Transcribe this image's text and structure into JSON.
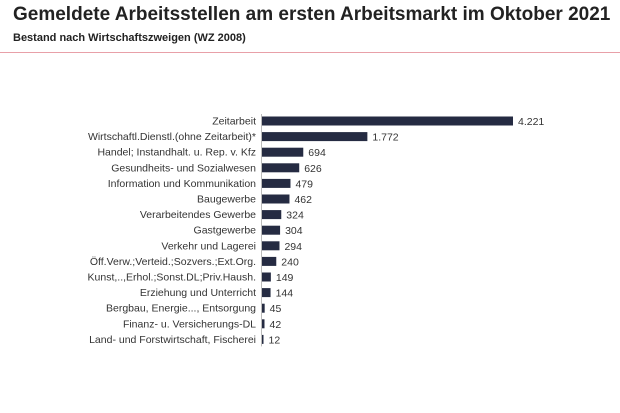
{
  "chart_data": {
    "type": "bar",
    "orientation": "horizontal",
    "title": "Gemeldete Arbeitsstellen am ersten Arbeitsmarkt im Oktober 2021",
    "subtitle": "Bestand nach Wirtschaftszweigen (WZ 2008)",
    "categories": [
      "Zeitarbeit",
      "Wirtschaftl.Dienstl.(ohne Zeitarbeit)*",
      "Handel; Instandhalt. u. Rep. v. Kfz",
      "Gesundheits- und Sozialwesen",
      "Information und Kommunikation",
      "Baugewerbe",
      "Verarbeitendes Gewerbe",
      "Gastgewerbe",
      "Verkehr und Lagerei",
      "Öff.Verw.;Verteid.;Sozvers.;Ext.Org.",
      "Kunst,..,Erhol.;Sonst.DL;Priv.Haush.",
      "Erziehung und Unterricht",
      "Bergbau, Energie..., Entsorgung",
      "Finanz- u. Versicherungs-DL",
      "Land- und Forstwirtschaft, Fischerei"
    ],
    "values": [
      4221,
      1772,
      694,
      626,
      479,
      462,
      324,
      304,
      294,
      240,
      149,
      144,
      45,
      42,
      12
    ],
    "value_labels": [
      "4.221",
      "1.772",
      "694",
      "626",
      "479",
      "462",
      "324",
      "304",
      "294",
      "240",
      "149",
      "144",
      "45",
      "42",
      "12"
    ],
    "bar_color": "#252b42",
    "xlim": [
      0,
      4221
    ],
    "grid": false,
    "legend": "none"
  },
  "colors": {
    "rule": "#e8a0a8"
  }
}
